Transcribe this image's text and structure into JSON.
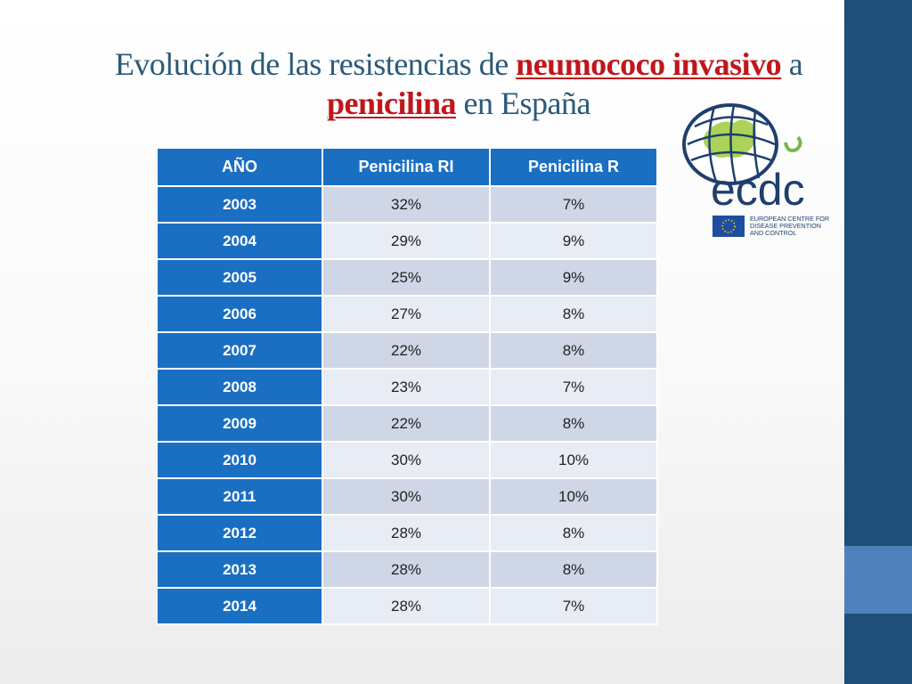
{
  "title": {
    "part1": "Evolución de las resistencias de ",
    "highlight1": "neumococo invasivo",
    "part2": " a ",
    "highlight2": "penicilina",
    "part3": " en España"
  },
  "table": {
    "headers": [
      "AÑO",
      "Penicilina RI",
      "Penicilina R"
    ],
    "rows": [
      {
        "year": "2003",
        "ri": "32%",
        "r": "7%"
      },
      {
        "year": "2004",
        "ri": "29%",
        "r": "9%"
      },
      {
        "year": "2005",
        "ri": "25%",
        "r": "9%"
      },
      {
        "year": "2006",
        "ri": "27%",
        "r": "8%"
      },
      {
        "year": "2007",
        "ri": "22%",
        "r": "8%"
      },
      {
        "year": "2008",
        "ri": "23%",
        "r": "7%"
      },
      {
        "year": "2009",
        "ri": "22%",
        "r": "8%"
      },
      {
        "year": "2010",
        "ri": "30%",
        "r": "10%"
      },
      {
        "year": "2011",
        "ri": "30%",
        "r": "10%"
      },
      {
        "year": "2012",
        "ri": "28%",
        "r": "8%"
      },
      {
        "year": "2013",
        "ri": "28%",
        "r": "8%"
      },
      {
        "year": "2014",
        "ri": "28%",
        "r": "7%"
      }
    ]
  },
  "logo": {
    "wordmark": "ecdc",
    "line1": "EUROPEAN CENTRE FOR",
    "line2": "DISEASE PREVENTION",
    "line3": "AND CONTROL"
  },
  "colors": {
    "title": "#2a5a78",
    "highlight": "#c0171c",
    "table_header": "#1a6fc2",
    "sidebar": "#1f4e79",
    "sidebar_accent": "#4f81bd"
  }
}
